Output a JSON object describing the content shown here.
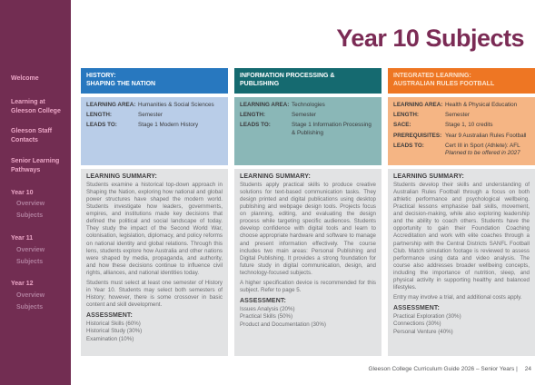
{
  "title": "Year 10 Subjects",
  "sidebar": {
    "items": [
      "Welcome",
      "Learning at Gleeson College",
      "Gleeson Staff Contacts",
      "Senior Learning Pathways"
    ],
    "years": [
      {
        "label": "Year 10",
        "sub": [
          "Overview",
          "Subjects"
        ]
      },
      {
        "label": "Year 11",
        "sub": [
          "Overview",
          "Subjects"
        ]
      },
      {
        "label": "Year 12",
        "sub": [
          "Overview",
          "Subjects"
        ]
      }
    ],
    "bg_color": "#722d52",
    "text_color": "#eba6c6",
    "sub_text_color": "#b07e9d"
  },
  "cards": [
    {
      "header": "HISTORY:\nSHAPING THE NATION",
      "accent_color": "#2878bf",
      "box_color": "#b9cde8",
      "info": [
        {
          "label": "LEARNING AREA:",
          "value": "Humanities & Social Sciences"
        },
        {
          "label": "LENGTH:",
          "value": "Semester"
        },
        {
          "label": "LEADS TO:",
          "value": "Stage 1 Modern History"
        }
      ],
      "summary_heading": "LEARNING SUMMARY:",
      "summary": [
        "Students examine a historical top-down approach in Shaping the Nation, exploring how national and global power structures have shaped the modern world. Students investigate how leaders, governments, empires, and institutions made key decisions that defined the political and social landscape of today. They study the impact of the Second World War, colonisation, legislation, diplomacy, and policy reforms on national identity and global relations. Through this lens, students explore how Australia and other nations were shaped by media, propaganda, and authority, and how these decisions continue to influence civil rights, alliances, and national identities today.",
        "Students must select at least one semester of History in Year 10. Students may select both semesters of History; however, there is some crossover in basic content and skill development."
      ],
      "assessment_heading": "ASSESSMENT:",
      "assessment": [
        "Historical Skills (60%)",
        "Historical Study (30%)",
        "Examination (10%)"
      ]
    },
    {
      "header": "INFORMATION PROCESSING &\nPUBLISHING",
      "accent_color": "#156a70",
      "box_color": "#8ab7b7",
      "info": [
        {
          "label": "LEARNING AREA:",
          "value": "Technologies"
        },
        {
          "label": "LENGTH:",
          "value": "Semester"
        },
        {
          "label": "LEADS TO:",
          "value": "Stage 1 Information Processing & Publishing"
        }
      ],
      "summary_heading": "LEARNING SUMMARY:",
      "summary": [
        "Students apply practical skills to produce creative solutions for text-based communication tasks. They design printed and digital publications using desktop publishing and webpage design tools. Projects focus on planning, editing, and evaluating the design process while targeting specific audiences. Students develop confidence with digital tools and learn to choose appropriate hardware and software to manage and present information effectively. The course includes two main areas: Personal Publishing and Digital Publishing. It provides a strong foundation for future study in digital communication, design, and technology-focused subjects.",
        "A higher specification device is recommended for this subject. Refer to page 5."
      ],
      "assessment_heading": "ASSESSMENT:",
      "assessment": [
        "Issues Analysis (20%)",
        "Practical Skills (50%)",
        "Product and Documentation (30%)"
      ]
    },
    {
      "header": "INTEGRATED LEARNING:\nAUSTRALIAN RULES FOOTBALL",
      "accent_color": "#ee7623",
      "box_color": "#f5b584",
      "info": [
        {
          "label": "LEARNING AREA:",
          "value": "Health & Physical Education"
        },
        {
          "label": "LENGTH:",
          "value": "Semester"
        },
        {
          "label": "SACE:",
          "value": "Stage 1, 10 credits"
        },
        {
          "label": "PREREQUISITES:",
          "value": "Year 9 Australian Rules Football"
        },
        {
          "label": "LEADS TO:",
          "value": "Cert III in Sport (Athlete): AFL",
          "note": "Planned to be offered in 2027"
        }
      ],
      "summary_heading": "LEARNING SUMMARY:",
      "summary": [
        "Students develop their skills and understanding of Australian Rules Football through a focus on both athletic performance and psychological wellbeing. Practical lessons emphasise ball skills, movement, and decision-making, while also exploring leadership and the ability to coach others. Students have the opportunity to gain their Foundation Coaching Accreditation and work with elite coaches through a partnership with the Central Districts SANFL Football Club. Match simulation footage is reviewed to assess performance using data and video analysis. The course also addresses broader wellbeing concepts, including the importance of nutrition, sleep, and physical activity in supporting healthy and balanced lifestyles.",
        "Entry may involve a trial, and additional costs apply."
      ],
      "assessment_heading": "ASSESSMENT:",
      "assessment": [
        "Practical Exploration (30%)",
        "Connections (30%)",
        "Personal Venture (40%)"
      ]
    }
  ],
  "footer": {
    "text": "Gleeson College Curriculum Guide 2026 – Senior Years  |",
    "page": "24"
  },
  "colors": {
    "title": "#7b2b55",
    "summary_box": "#e2e3e4",
    "body_text": "#6d6e71"
  }
}
